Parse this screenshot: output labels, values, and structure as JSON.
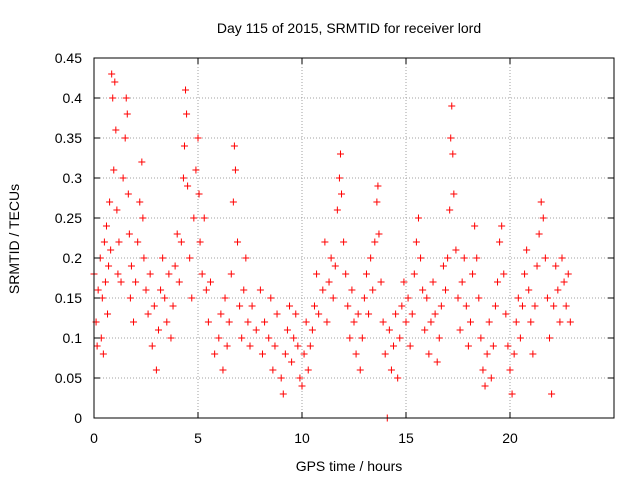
{
  "chart_data": {
    "type": "scatter",
    "title": "Day 115 of 2015, SRMTID for receiver lord",
    "xlabel": "GPS time / hours",
    "ylabel": "SRMTID / TECUs",
    "xlim": [
      0,
      25
    ],
    "ylim": [
      0,
      0.45
    ],
    "x_ticks": [
      {
        "value": 0,
        "label": "0"
      },
      {
        "value": 5,
        "label": "5"
      },
      {
        "value": 10,
        "label": "10"
      },
      {
        "value": 15,
        "label": "15"
      },
      {
        "value": 20,
        "label": "20"
      }
    ],
    "y_ticks": [
      {
        "value": 0,
        "label": "0"
      },
      {
        "value": 0.05,
        "label": "0.05"
      },
      {
        "value": 0.1,
        "label": "0.1"
      },
      {
        "value": 0.15,
        "label": "0.15"
      },
      {
        "value": 0.2,
        "label": "0.2"
      },
      {
        "value": 0.25,
        "label": "0.25"
      },
      {
        "value": 0.3,
        "label": "0.3"
      },
      {
        "value": 0.35,
        "label": "0.35"
      },
      {
        "value": 0.4,
        "label": "0.4"
      },
      {
        "value": 0.45,
        "label": "0.45"
      }
    ],
    "grid": true,
    "marker": "+",
    "series": [
      {
        "name": "SRMTID",
        "color": "#ff0000",
        "points": [
          [
            0.0,
            0.18
          ],
          [
            0.1,
            0.12
          ],
          [
            0.15,
            0.09
          ],
          [
            0.2,
            0.16
          ],
          [
            0.3,
            0.2
          ],
          [
            0.35,
            0.1
          ],
          [
            0.4,
            0.15
          ],
          [
            0.45,
            0.08
          ],
          [
            0.5,
            0.22
          ],
          [
            0.55,
            0.17
          ],
          [
            0.6,
            0.24
          ],
          [
            0.65,
            0.13
          ],
          [
            0.7,
            0.19
          ],
          [
            0.75,
            0.27
          ],
          [
            0.8,
            0.21
          ],
          [
            0.85,
            0.43
          ],
          [
            0.9,
            0.4
          ],
          [
            0.95,
            0.31
          ],
          [
            1.0,
            0.42
          ],
          [
            1.05,
            0.36
          ],
          [
            1.1,
            0.26
          ],
          [
            1.15,
            0.18
          ],
          [
            1.2,
            0.22
          ],
          [
            1.3,
            0.17
          ],
          [
            1.4,
            0.3
          ],
          [
            1.5,
            0.35
          ],
          [
            1.55,
            0.4
          ],
          [
            1.6,
            0.38
          ],
          [
            1.65,
            0.28
          ],
          [
            1.7,
            0.23
          ],
          [
            1.75,
            0.15
          ],
          [
            1.8,
            0.19
          ],
          [
            1.9,
            0.12
          ],
          [
            2.0,
            0.17
          ],
          [
            2.1,
            0.22
          ],
          [
            2.2,
            0.27
          ],
          [
            2.3,
            0.32
          ],
          [
            2.35,
            0.25
          ],
          [
            2.4,
            0.2
          ],
          [
            2.5,
            0.16
          ],
          [
            2.6,
            0.13
          ],
          [
            2.7,
            0.18
          ],
          [
            2.8,
            0.09
          ],
          [
            2.9,
            0.14
          ],
          [
            3.0,
            0.06
          ],
          [
            3.1,
            0.11
          ],
          [
            3.2,
            0.16
          ],
          [
            3.3,
            0.2
          ],
          [
            3.4,
            0.15
          ],
          [
            3.5,
            0.12
          ],
          [
            3.6,
            0.18
          ],
          [
            3.7,
            0.1
          ],
          [
            3.8,
            0.14
          ],
          [
            3.9,
            0.19
          ],
          [
            4.0,
            0.23
          ],
          [
            4.1,
            0.17
          ],
          [
            4.2,
            0.22
          ],
          [
            4.3,
            0.3
          ],
          [
            4.35,
            0.34
          ],
          [
            4.4,
            0.41
          ],
          [
            4.45,
            0.38
          ],
          [
            4.5,
            0.29
          ],
          [
            4.6,
            0.2
          ],
          [
            4.7,
            0.15
          ],
          [
            4.8,
            0.25
          ],
          [
            4.9,
            0.31
          ],
          [
            5.0,
            0.35
          ],
          [
            5.05,
            0.28
          ],
          [
            5.1,
            0.22
          ],
          [
            5.2,
            0.18
          ],
          [
            5.3,
            0.25
          ],
          [
            5.4,
            0.16
          ],
          [
            5.5,
            0.12
          ],
          [
            5.6,
            0.17
          ],
          [
            5.8,
            0.08
          ],
          [
            6.0,
            0.1
          ],
          [
            6.1,
            0.13
          ],
          [
            6.2,
            0.06
          ],
          [
            6.3,
            0.15
          ],
          [
            6.4,
            0.09
          ],
          [
            6.5,
            0.12
          ],
          [
            6.6,
            0.18
          ],
          [
            6.7,
            0.27
          ],
          [
            6.75,
            0.34
          ],
          [
            6.8,
            0.31
          ],
          [
            6.9,
            0.22
          ],
          [
            7.0,
            0.14
          ],
          [
            7.1,
            0.1
          ],
          [
            7.2,
            0.16
          ],
          [
            7.3,
            0.2
          ],
          [
            7.4,
            0.12
          ],
          [
            7.5,
            0.09
          ],
          [
            7.6,
            0.14
          ],
          [
            7.8,
            0.11
          ],
          [
            8.0,
            0.16
          ],
          [
            8.1,
            0.08
          ],
          [
            8.2,
            0.12
          ],
          [
            8.4,
            0.1
          ],
          [
            8.5,
            0.15
          ],
          [
            8.6,
            0.06
          ],
          [
            8.7,
            0.09
          ],
          [
            8.8,
            0.13
          ],
          [
            9.0,
            0.05
          ],
          [
            9.1,
            0.03
          ],
          [
            9.2,
            0.08
          ],
          [
            9.3,
            0.11
          ],
          [
            9.4,
            0.14
          ],
          [
            9.5,
            0.07
          ],
          [
            9.6,
            0.1
          ],
          [
            9.7,
            0.13
          ],
          [
            9.8,
            0.09
          ],
          [
            9.9,
            0.05
          ],
          [
            10.0,
            0.04
          ],
          [
            10.1,
            0.08
          ],
          [
            10.2,
            0.12
          ],
          [
            10.3,
            0.06
          ],
          [
            10.4,
            0.09
          ],
          [
            10.5,
            0.11
          ],
          [
            10.6,
            0.14
          ],
          [
            10.7,
            0.18
          ],
          [
            10.8,
            0.13
          ],
          [
            11.0,
            0.16
          ],
          [
            11.1,
            0.22
          ],
          [
            11.2,
            0.12
          ],
          [
            11.3,
            0.17
          ],
          [
            11.4,
            0.2
          ],
          [
            11.5,
            0.15
          ],
          [
            11.6,
            0.19
          ],
          [
            11.7,
            0.26
          ],
          [
            11.8,
            0.3
          ],
          [
            11.85,
            0.33
          ],
          [
            11.9,
            0.28
          ],
          [
            12.0,
            0.22
          ],
          [
            12.1,
            0.18
          ],
          [
            12.2,
            0.14
          ],
          [
            12.3,
            0.1
          ],
          [
            12.4,
            0.16
          ],
          [
            12.5,
            0.12
          ],
          [
            12.6,
            0.08
          ],
          [
            12.7,
            0.13
          ],
          [
            12.8,
            0.06
          ],
          [
            12.9,
            0.1
          ],
          [
            13.0,
            0.15
          ],
          [
            13.1,
            0.18
          ],
          [
            13.2,
            0.13
          ],
          [
            13.3,
            0.2
          ],
          [
            13.4,
            0.16
          ],
          [
            13.5,
            0.22
          ],
          [
            13.6,
            0.27
          ],
          [
            13.65,
            0.29
          ],
          [
            13.7,
            0.23
          ],
          [
            13.8,
            0.17
          ],
          [
            13.9,
            0.12
          ],
          [
            14.0,
            0.08
          ],
          [
            14.1,
            0.0
          ],
          [
            14.2,
            0.11
          ],
          [
            14.3,
            0.06
          ],
          [
            14.4,
            0.09
          ],
          [
            14.5,
            0.13
          ],
          [
            14.6,
            0.05
          ],
          [
            14.7,
            0.1
          ],
          [
            14.8,
            0.14
          ],
          [
            14.9,
            0.17
          ],
          [
            15.0,
            0.12
          ],
          [
            15.1,
            0.15
          ],
          [
            15.2,
            0.09
          ],
          [
            15.3,
            0.13
          ],
          [
            15.4,
            0.18
          ],
          [
            15.5,
            0.22
          ],
          [
            15.6,
            0.25
          ],
          [
            15.7,
            0.2
          ],
          [
            15.8,
            0.16
          ],
          [
            15.9,
            0.11
          ],
          [
            16.0,
            0.15
          ],
          [
            16.1,
            0.08
          ],
          [
            16.2,
            0.12
          ],
          [
            16.3,
            0.17
          ],
          [
            16.4,
            0.13
          ],
          [
            16.5,
            0.07
          ],
          [
            16.6,
            0.1
          ],
          [
            16.7,
            0.14
          ],
          [
            16.8,
            0.19
          ],
          [
            16.9,
            0.16
          ],
          [
            17.0,
            0.2
          ],
          [
            17.1,
            0.26
          ],
          [
            17.15,
            0.35
          ],
          [
            17.2,
            0.39
          ],
          [
            17.25,
            0.33
          ],
          [
            17.3,
            0.28
          ],
          [
            17.4,
            0.21
          ],
          [
            17.5,
            0.15
          ],
          [
            17.6,
            0.11
          ],
          [
            17.7,
            0.17
          ],
          [
            17.8,
            0.2
          ],
          [
            17.9,
            0.14
          ],
          [
            18.0,
            0.09
          ],
          [
            18.1,
            0.12
          ],
          [
            18.2,
            0.18
          ],
          [
            18.3,
            0.24
          ],
          [
            18.4,
            0.2
          ],
          [
            18.5,
            0.15
          ],
          [
            18.6,
            0.1
          ],
          [
            18.7,
            0.06
          ],
          [
            18.8,
            0.04
          ],
          [
            18.9,
            0.08
          ],
          [
            19.0,
            0.12
          ],
          [
            19.1,
            0.05
          ],
          [
            19.2,
            0.09
          ],
          [
            19.3,
            0.14
          ],
          [
            19.4,
            0.17
          ],
          [
            19.5,
            0.22
          ],
          [
            19.6,
            0.24
          ],
          [
            19.7,
            0.18
          ],
          [
            19.8,
            0.13
          ],
          [
            19.9,
            0.09
          ],
          [
            20.0,
            0.06
          ],
          [
            20.1,
            0.03
          ],
          [
            20.2,
            0.08
          ],
          [
            20.3,
            0.12
          ],
          [
            20.4,
            0.15
          ],
          [
            20.5,
            0.1
          ],
          [
            20.6,
            0.14
          ],
          [
            20.7,
            0.18
          ],
          [
            20.8,
            0.21
          ],
          [
            20.9,
            0.16
          ],
          [
            21.0,
            0.12
          ],
          [
            21.1,
            0.08
          ],
          [
            21.2,
            0.14
          ],
          [
            21.3,
            0.19
          ],
          [
            21.4,
            0.23
          ],
          [
            21.5,
            0.27
          ],
          [
            21.6,
            0.25
          ],
          [
            21.7,
            0.2
          ],
          [
            21.8,
            0.15
          ],
          [
            21.9,
            0.1
          ],
          [
            22.0,
            0.03
          ],
          [
            22.1,
            0.14
          ],
          [
            22.2,
            0.19
          ],
          [
            22.3,
            0.16
          ],
          [
            22.4,
            0.12
          ],
          [
            22.5,
            0.2
          ],
          [
            22.6,
            0.17
          ],
          [
            22.7,
            0.14
          ],
          [
            22.8,
            0.18
          ],
          [
            22.9,
            0.12
          ]
        ]
      }
    ]
  }
}
